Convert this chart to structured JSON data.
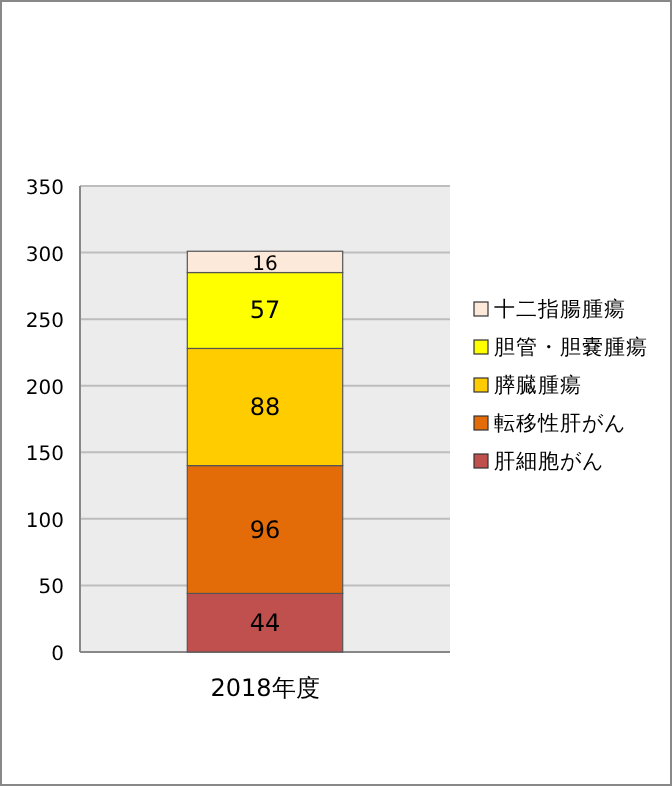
{
  "chart_data": {
    "type": "bar",
    "stacked": true,
    "categories": [
      "2018年度"
    ],
    "series": [
      {
        "name": "肝細胞がん",
        "color": "#c0504d",
        "values": [
          44
        ]
      },
      {
        "name": "転移性肝がん",
        "color": "#e36c09",
        "values": [
          96
        ]
      },
      {
        "name": "膵臓腫瘍",
        "color": "#ffcc00",
        "values": [
          88
        ]
      },
      {
        "name": "胆管・胆嚢腫瘍",
        "color": "#ffff00",
        "values": [
          57
        ]
      },
      {
        "name": "十二指腸腫瘍",
        "color": "#fde9d9",
        "values": [
          16
        ]
      }
    ],
    "ylim": [
      0,
      350
    ],
    "yticks": [
      0,
      50,
      100,
      150,
      200,
      250,
      300,
      350
    ],
    "grid": "y",
    "data_labels": true,
    "legend": "right"
  }
}
